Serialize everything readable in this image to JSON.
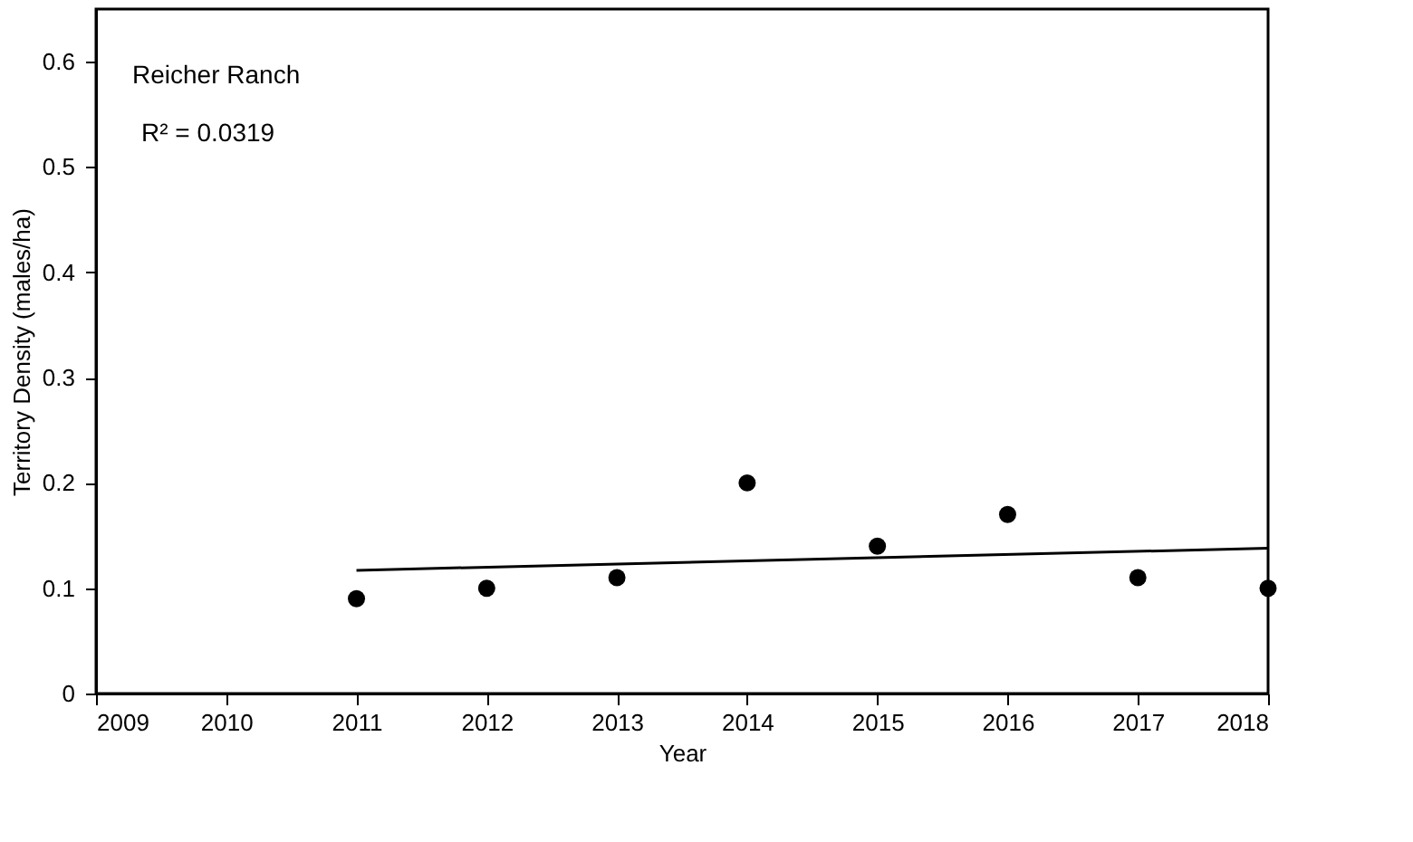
{
  "chart_data": {
    "type": "scatter",
    "xlabel": "Year",
    "ylabel": "Territory Density (males/ha)",
    "x": [
      2011,
      2012,
      2013,
      2014,
      2015,
      2016,
      2017,
      2018
    ],
    "series": [
      {
        "color": "#000000",
        "values": [
          0.09,
          0.1,
          0.11,
          0.2,
          0.14,
          0.17,
          0.11,
          0.1
        ]
      },
      {
        "type": "line",
        "marker": "none",
        "color": "#000000",
        "x": [
          2011,
          2018
        ],
        "values": [
          0.117,
          0.138
        ]
      }
    ],
    "annotations": [
      "Reicher Ranch",
      "R² = 0.0319"
    ],
    "xlim": [
      2009,
      2018
    ],
    "xticks": [
      2009,
      2010,
      2011,
      2012,
      2013,
      2014,
      2015,
      2016,
      2017,
      2018
    ],
    "ylim": [
      0,
      0.65
    ],
    "yticks": [
      0,
      0.1,
      0.2,
      0.3,
      0.4,
      0.5,
      0.6
    ],
    "grid": false,
    "marker": "circle"
  }
}
